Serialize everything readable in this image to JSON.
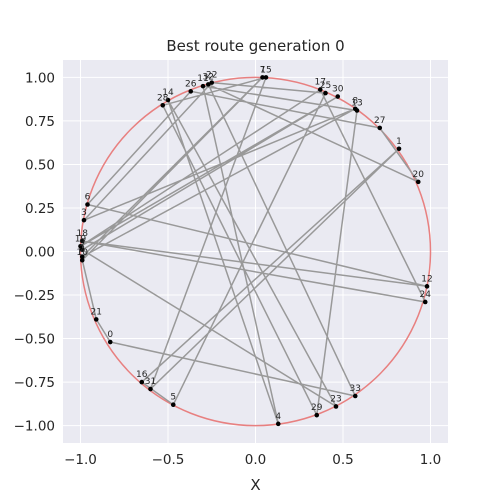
{
  "chart_data": {
    "type": "scatter",
    "title": "Best route generation 0",
    "xlabel": "X",
    "ylabel": "",
    "xlim": [
      -1.1,
      1.1
    ],
    "ylim": [
      -1.1,
      1.1
    ],
    "xticks": [
      -1.0,
      -0.5,
      0.0,
      0.5,
      1.0
    ],
    "yticks": [
      -1.0,
      -0.75,
      -0.5,
      -0.25,
      0.0,
      0.25,
      0.5,
      0.75,
      1.0
    ],
    "xtick_labels": [
      "−1.0",
      "−0.5",
      "0.0",
      "0.5",
      "1.0"
    ],
    "ytick_labels": [
      "−1.00",
      "−0.75",
      "−0.50",
      "−0.25",
      "0.00",
      "0.25",
      "0.50",
      "0.75",
      "1.00"
    ],
    "grid": true,
    "background_color": "#eaeaf2",
    "circle": {
      "center": [
        0,
        0
      ],
      "radius": 1,
      "color": "#e88080"
    },
    "route_color": "#999999",
    "point_color": "#000000",
    "points": [
      {
        "label": "0",
        "x": -0.83,
        "y": -0.52
      },
      {
        "label": "1",
        "x": 0.82,
        "y": 0.59
      },
      {
        "label": "2",
        "x": -0.99,
        "y": -0.03
      },
      {
        "label": "3",
        "x": -0.98,
        "y": 0.18
      },
      {
        "label": "4",
        "x": 0.13,
        "y": -0.99
      },
      {
        "label": "5",
        "x": -0.47,
        "y": -0.88
      },
      {
        "label": "6",
        "x": -0.96,
        "y": 0.27
      },
      {
        "label": "7",
        "x": 0.04,
        "y": 1.0
      },
      {
        "label": "8",
        "x": 0.57,
        "y": 0.82
      },
      {
        "label": "9",
        "x": -0.99,
        "y": 0.01
      },
      {
        "label": "10",
        "x": -0.99,
        "y": -0.05
      },
      {
        "label": "11",
        "x": -0.3,
        "y": 0.95
      },
      {
        "label": "12",
        "x": 0.98,
        "y": -0.2
      },
      {
        "label": "13",
        "x": 0.58,
        "y": 0.81
      },
      {
        "label": "14",
        "x": -0.5,
        "y": 0.87
      },
      {
        "label": "15",
        "x": 0.06,
        "y": 1.0
      },
      {
        "label": "16",
        "x": -0.65,
        "y": -0.75
      },
      {
        "label": "17",
        "x": 0.37,
        "y": 0.93
      },
      {
        "label": "18",
        "x": -0.99,
        "y": 0.06
      },
      {
        "label": "19",
        "x": -1.0,
        "y": 0.03
      },
      {
        "label": "20",
        "x": 0.93,
        "y": 0.4
      },
      {
        "label": "21",
        "x": -0.91,
        "y": -0.39
      },
      {
        "label": "22",
        "x": -0.25,
        "y": 0.97
      },
      {
        "label": "23",
        "x": 0.46,
        "y": -0.89
      },
      {
        "label": "24",
        "x": 0.97,
        "y": -0.29
      },
      {
        "label": "25",
        "x": 0.4,
        "y": 0.91
      },
      {
        "label": "26",
        "x": -0.37,
        "y": 0.92
      },
      {
        "label": "27",
        "x": 0.71,
        "y": 0.71
      },
      {
        "label": "28",
        "x": -0.53,
        "y": 0.84
      },
      {
        "label": "29",
        "x": 0.35,
        "y": -0.94
      },
      {
        "label": "30",
        "x": 0.47,
        "y": 0.89
      },
      {
        "label": "31",
        "x": -0.6,
        "y": -0.79
      },
      {
        "label": "32",
        "x": -0.27,
        "y": 0.96
      },
      {
        "label": "33",
        "x": 0.57,
        "y": -0.83
      }
    ],
    "route": [
      0,
      21,
      10,
      7,
      2,
      8,
      3,
      22,
      25,
      5,
      16,
      1,
      31,
      15,
      28,
      29,
      13,
      11,
      4,
      14,
      23,
      9,
      30,
      19,
      17,
      24,
      18,
      12,
      6,
      26,
      27,
      20,
      32,
      33,
      0
    ]
  }
}
